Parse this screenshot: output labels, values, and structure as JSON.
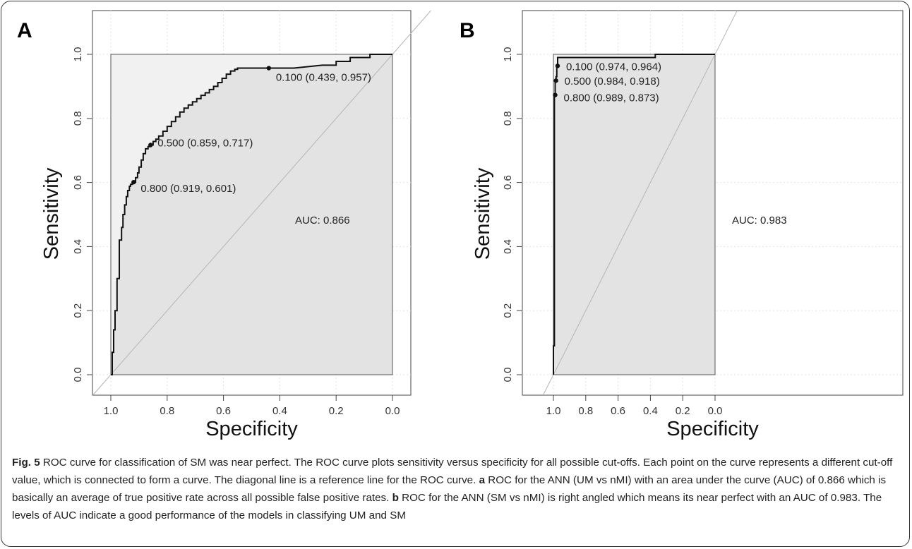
{
  "chart_data": [
    {
      "panel_label": "A",
      "type": "line",
      "xlabel": "Specificity",
      "ylabel": "Sensitivity",
      "xlim": [
        1.0,
        0.0
      ],
      "ylim": [
        0.0,
        1.0
      ],
      "x_ticks": [
        "1.0",
        "0.8",
        "0.6",
        "0.4",
        "0.2",
        "0.0"
      ],
      "y_ticks": [
        "0.0",
        "0.2",
        "0.4",
        "0.6",
        "0.8",
        "1.0"
      ],
      "grid": true,
      "reference_line": "diagonal",
      "auc_label": "AUC: 0.866",
      "series": [
        {
          "x": [
            1.0,
            0.995,
            0.995,
            0.99,
            0.99,
            0.985,
            0.985,
            0.978,
            0.978,
            0.97,
            0.97,
            0.962,
            0.962,
            0.957,
            0.957,
            0.951,
            0.951,
            0.945,
            0.945,
            0.94,
            0.94,
            0.934,
            0.934,
            0.93,
            0.93,
            0.924,
            0.924,
            0.919,
            0.919,
            0.912,
            0.912,
            0.905,
            0.905,
            0.9,
            0.9,
            0.892,
            0.892,
            0.885,
            0.885,
            0.877,
            0.877,
            0.868,
            0.868,
            0.859,
            0.859,
            0.85,
            0.85,
            0.84,
            0.84,
            0.83,
            0.83,
            0.815,
            0.815,
            0.8,
            0.8,
            0.785,
            0.785,
            0.77,
            0.77,
            0.755,
            0.755,
            0.74,
            0.74,
            0.725,
            0.725,
            0.71,
            0.71,
            0.695,
            0.695,
            0.68,
            0.68,
            0.665,
            0.665,
            0.65,
            0.65,
            0.635,
            0.635,
            0.62,
            0.62,
            0.605,
            0.605,
            0.59,
            0.59,
            0.575,
            0.575,
            0.56,
            0.56,
            0.55,
            0.55,
            0.5,
            0.439,
            0.35,
            0.25,
            0.2,
            0.2,
            0.15,
            0.15,
            0.08,
            0.08,
            0.0
          ],
          "y": [
            0.0,
            0.0,
            0.07,
            0.07,
            0.14,
            0.14,
            0.2,
            0.2,
            0.3,
            0.3,
            0.42,
            0.42,
            0.46,
            0.46,
            0.5,
            0.5,
            0.53,
            0.53,
            0.556,
            0.556,
            0.575,
            0.575,
            0.588,
            0.588,
            0.594,
            0.594,
            0.6,
            0.6,
            0.601,
            0.601,
            0.615,
            0.615,
            0.63,
            0.63,
            0.648,
            0.648,
            0.67,
            0.67,
            0.69,
            0.69,
            0.705,
            0.705,
            0.712,
            0.712,
            0.717,
            0.717,
            0.728,
            0.728,
            0.735,
            0.735,
            0.745,
            0.745,
            0.76,
            0.76,
            0.775,
            0.775,
            0.79,
            0.79,
            0.805,
            0.805,
            0.82,
            0.82,
            0.832,
            0.832,
            0.842,
            0.842,
            0.852,
            0.852,
            0.862,
            0.862,
            0.872,
            0.872,
            0.88,
            0.88,
            0.89,
            0.89,
            0.9,
            0.9,
            0.912,
            0.912,
            0.925,
            0.925,
            0.938,
            0.938,
            0.948,
            0.948,
            0.953,
            0.953,
            0.957,
            0.957,
            0.957,
            0.957,
            0.966,
            0.966,
            0.978,
            0.978,
            0.99,
            0.99,
            1.0,
            1.0
          ]
        }
      ],
      "cutoffs": [
        {
          "x": 0.439,
          "y": 0.957,
          "label": "0.100 (0.439, 0.957)"
        },
        {
          "x": 0.859,
          "y": 0.717,
          "label": "0.500 (0.859, 0.717)"
        },
        {
          "x": 0.919,
          "y": 0.601,
          "label": "0.800 (0.919, 0.601)"
        }
      ]
    },
    {
      "panel_label": "B",
      "type": "line",
      "xlabel": "Specificity",
      "ylabel": "Sensitivity",
      "xlim": [
        1.2,
        -0.2
      ],
      "ylim": [
        0.0,
        1.0
      ],
      "x_ticks": [
        "1.0",
        "0.8",
        "0.6",
        "0.4",
        "0.2",
        "0.0"
      ],
      "y_ticks": [
        "0.0",
        "0.2",
        "0.4",
        "0.6",
        "0.8",
        "1.0"
      ],
      "grid": true,
      "reference_line": "diagonal",
      "auc_label": "AUC: 0.983",
      "series": [
        {
          "x": [
            1.0,
            1.0,
            0.994,
            0.994,
            0.989,
            0.989,
            0.984,
            0.984,
            0.979,
            0.979,
            0.974,
            0.974,
            0.965,
            0.965,
            0.37,
            0.37,
            0.0
          ],
          "y": [
            0.0,
            0.09,
            0.09,
            0.873,
            0.873,
            0.918,
            0.918,
            0.93,
            0.93,
            0.964,
            0.964,
            0.99,
            0.99,
            0.99,
            0.99,
            1.0,
            1.0
          ]
        }
      ],
      "cutoffs": [
        {
          "x": 0.974,
          "y": 0.964,
          "label": "0.100 (0.974, 0.964)"
        },
        {
          "x": 0.984,
          "y": 0.918,
          "label": "0.500 (0.984, 0.918)"
        },
        {
          "x": 0.989,
          "y": 0.873,
          "label": "0.800 (0.989, 0.873)"
        }
      ]
    }
  ],
  "caption": {
    "fig_label": "Fig. 5",
    "intro": " ROC curve for classification of SM was near perfect. The ROC curve plots sensitivity versus specificity for all possible cut-offs. Each point on the curve represents a different cut-off value, which is connected to form a curve. The diagonal line is a reference line for the ROC curve. ",
    "letter_a": "a",
    "text_a": " ROC for the ANN (UM vs nMI) with an area under the curve (AUC) of 0.866 which is basically an average of true positive rate across all possible false positive rates. ",
    "letter_b": "b",
    "text_b": " ROC for the ANN (SM vs nMI) is right angled which means its near perfect with an AUC of 0.983. The levels of AUC indicate a good performance of the models in classifying UM and SM"
  }
}
